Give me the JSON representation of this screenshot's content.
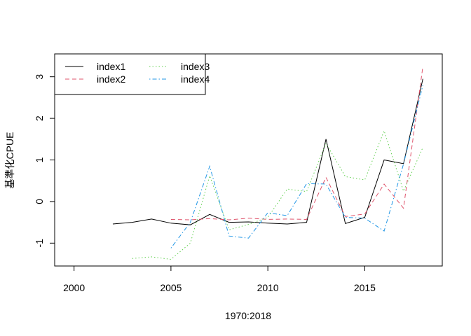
{
  "chart_data": {
    "type": "line",
    "title": "",
    "xlabel": "1970:2018",
    "ylabel": "基準化CPUE",
    "xlim": [
      1999,
      2019
    ],
    "ylim": [
      -1.55,
      3.55
    ],
    "x_ticks": [
      2000,
      2005,
      2010,
      2015
    ],
    "y_ticks": [
      -1,
      0,
      1,
      2,
      3
    ],
    "grid": false,
    "legend": {
      "position": "top-left",
      "columns": 2
    },
    "series": [
      {
        "name": "index1",
        "color": "#000000",
        "dash": "solid",
        "x": [
          2002,
          2003,
          2004,
          2005,
          2006,
          2007,
          2008,
          2009,
          2010,
          2011,
          2012,
          2013,
          2014,
          2015,
          2016,
          2017,
          2018
        ],
        "values": [
          -0.54,
          -0.5,
          -0.42,
          -0.52,
          -0.56,
          -0.31,
          -0.5,
          -0.49,
          -0.52,
          -0.54,
          -0.5,
          1.5,
          -0.53,
          -0.38,
          1.0,
          0.91,
          2.95
        ]
      },
      {
        "name": "index2",
        "color": "#DF536B",
        "dash": "dashed",
        "x": [
          2005,
          2006,
          2007,
          2008,
          2009,
          2010,
          2011,
          2012,
          2013,
          2014,
          2015,
          2016,
          2017,
          2018
        ],
        "values": [
          -0.43,
          -0.44,
          -0.41,
          -0.44,
          -0.4,
          -0.43,
          -0.42,
          -0.43,
          0.58,
          -0.36,
          -0.3,
          0.42,
          -0.16,
          3.25
        ]
      },
      {
        "name": "index3",
        "color": "#61D04F",
        "dash": "dotted",
        "x": [
          2003,
          2004,
          2005,
          2006,
          2007,
          2008,
          2009,
          2010,
          2011,
          2012,
          2013,
          2014,
          2015,
          2016,
          2017,
          2018
        ],
        "values": [
          -1.37,
          -1.33,
          -1.39,
          -1.0,
          0.62,
          -0.68,
          -0.55,
          -0.38,
          0.3,
          0.24,
          1.4,
          0.6,
          0.52,
          1.7,
          0.25,
          1.3
        ]
      },
      {
        "name": "index4",
        "color": "#2297E6",
        "dash": "dotdash",
        "x": [
          2005,
          2006,
          2007,
          2008,
          2009,
          2010,
          2011,
          2012,
          2013,
          2014,
          2015,
          2016,
          2017,
          2018
        ],
        "values": [
          -1.12,
          -0.5,
          0.85,
          -0.83,
          -0.88,
          -0.27,
          -0.34,
          0.43,
          0.42,
          -0.38,
          -0.4,
          -0.71,
          0.9,
          2.8
        ]
      }
    ]
  }
}
